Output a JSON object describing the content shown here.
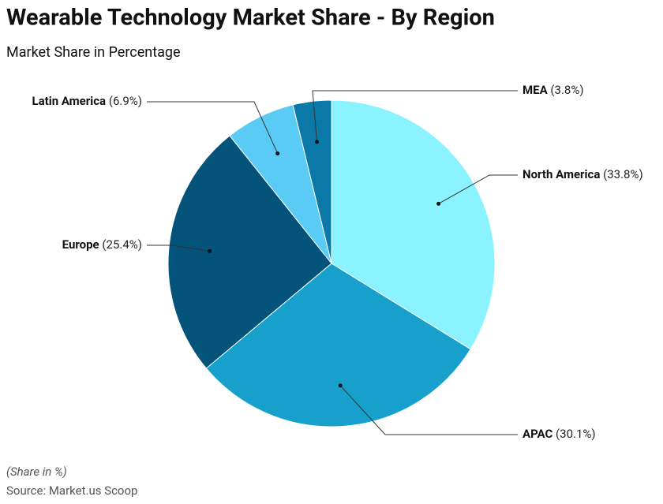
{
  "chart_data": {
    "type": "pie",
    "title": "Wearable Technology Market Share - By Region",
    "subtitle": "Market Share in Percentage",
    "categories": [
      "North America",
      "APAC",
      "Europe",
      "Latin America",
      "MEA"
    ],
    "values": [
      33.8,
      30.1,
      25.4,
      6.9,
      3.8
    ],
    "value_labels": [
      "(33.8%)",
      "(30.1%)",
      "(25.4%)",
      "(6.9%)",
      "(3.8%)"
    ],
    "colors": [
      "#8af3ff",
      "#18a0cc",
      "#03537a",
      "#5acbf5",
      "#0a79a8"
    ],
    "note": "(Share in %)",
    "source": "Source: Market.us Scoop"
  }
}
